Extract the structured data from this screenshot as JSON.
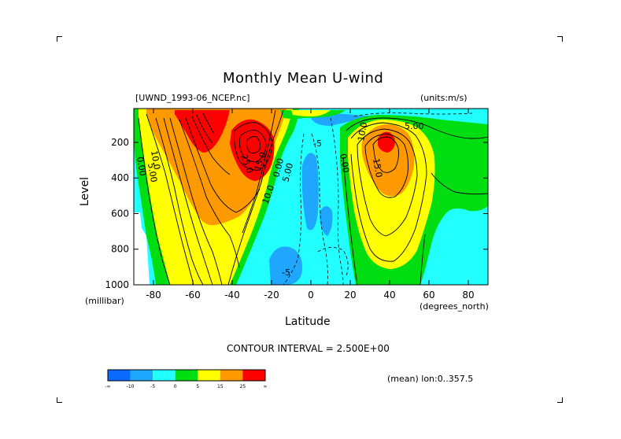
{
  "chart_data": {
    "type": "heatmap",
    "title": "Monthly Mean U-wind",
    "dataset_label": "[UWND_1993-06_NCEP.nc]",
    "units_label": "(units:m/s)",
    "xlabel": "Latitude",
    "ylabel": "Level",
    "x_unit": "(degrees_north)",
    "y_unit": "(millibar)",
    "x_ticks": [
      -80,
      -60,
      -40,
      -20,
      0,
      20,
      40,
      60,
      80
    ],
    "y_ticks": [
      200,
      400,
      600,
      800,
      1000
    ],
    "xlim": [
      -90,
      90
    ],
    "ylim": [
      1000,
      10
    ],
    "contour_interval_text": "CONTOUR INTERVAL = 2.500E+00",
    "contour_labels": [
      "10.0",
      "5.00",
      "0.00",
      "25.0",
      "15.0",
      "10.0",
      "5.00",
      "0.00",
      "-5",
      "10.0",
      "15.0",
      "0.00",
      "5.00",
      "-5"
    ],
    "footer_text": "(mean) lon:0..357.5",
    "colorbar": {
      "labels": [
        "-∞",
        "-10",
        "-5",
        "0",
        "5",
        "15",
        "25",
        "∞"
      ],
      "colors": [
        "#0a6cff",
        "#1fa6ff",
        "#22ffff",
        "#00dd11",
        "#ffff00",
        "#ff9900",
        "#ff0000"
      ]
    },
    "features": [
      {
        "name": "southern-jet",
        "lat": -57,
        "level": 200,
        "peak": 30
      },
      {
        "name": "subtropical-jet",
        "lat": -30,
        "level": 200,
        "peak": 28
      },
      {
        "name": "northern-jet",
        "lat": 38,
        "level": 200,
        "peak": 26
      }
    ]
  }
}
